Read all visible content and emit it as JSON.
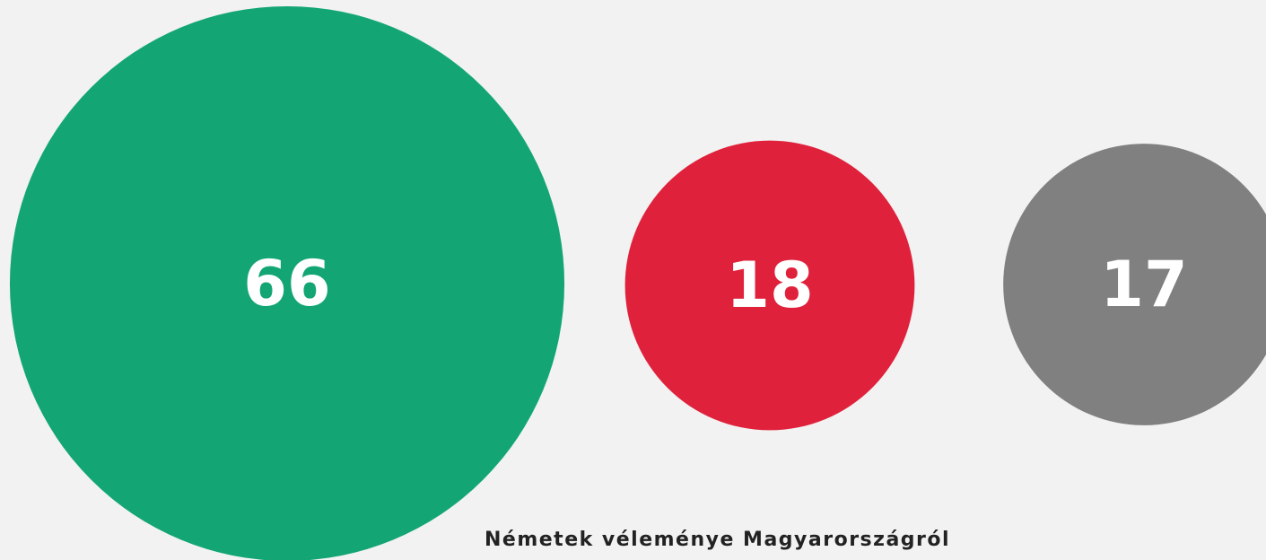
{
  "chart_data": {
    "type": "bubble",
    "title": "Németek véleménye Magyarországról",
    "values": [
      66,
      18,
      17
    ],
    "colors": [
      "#13a674",
      "#e0213c",
      "#808080"
    ]
  }
}
